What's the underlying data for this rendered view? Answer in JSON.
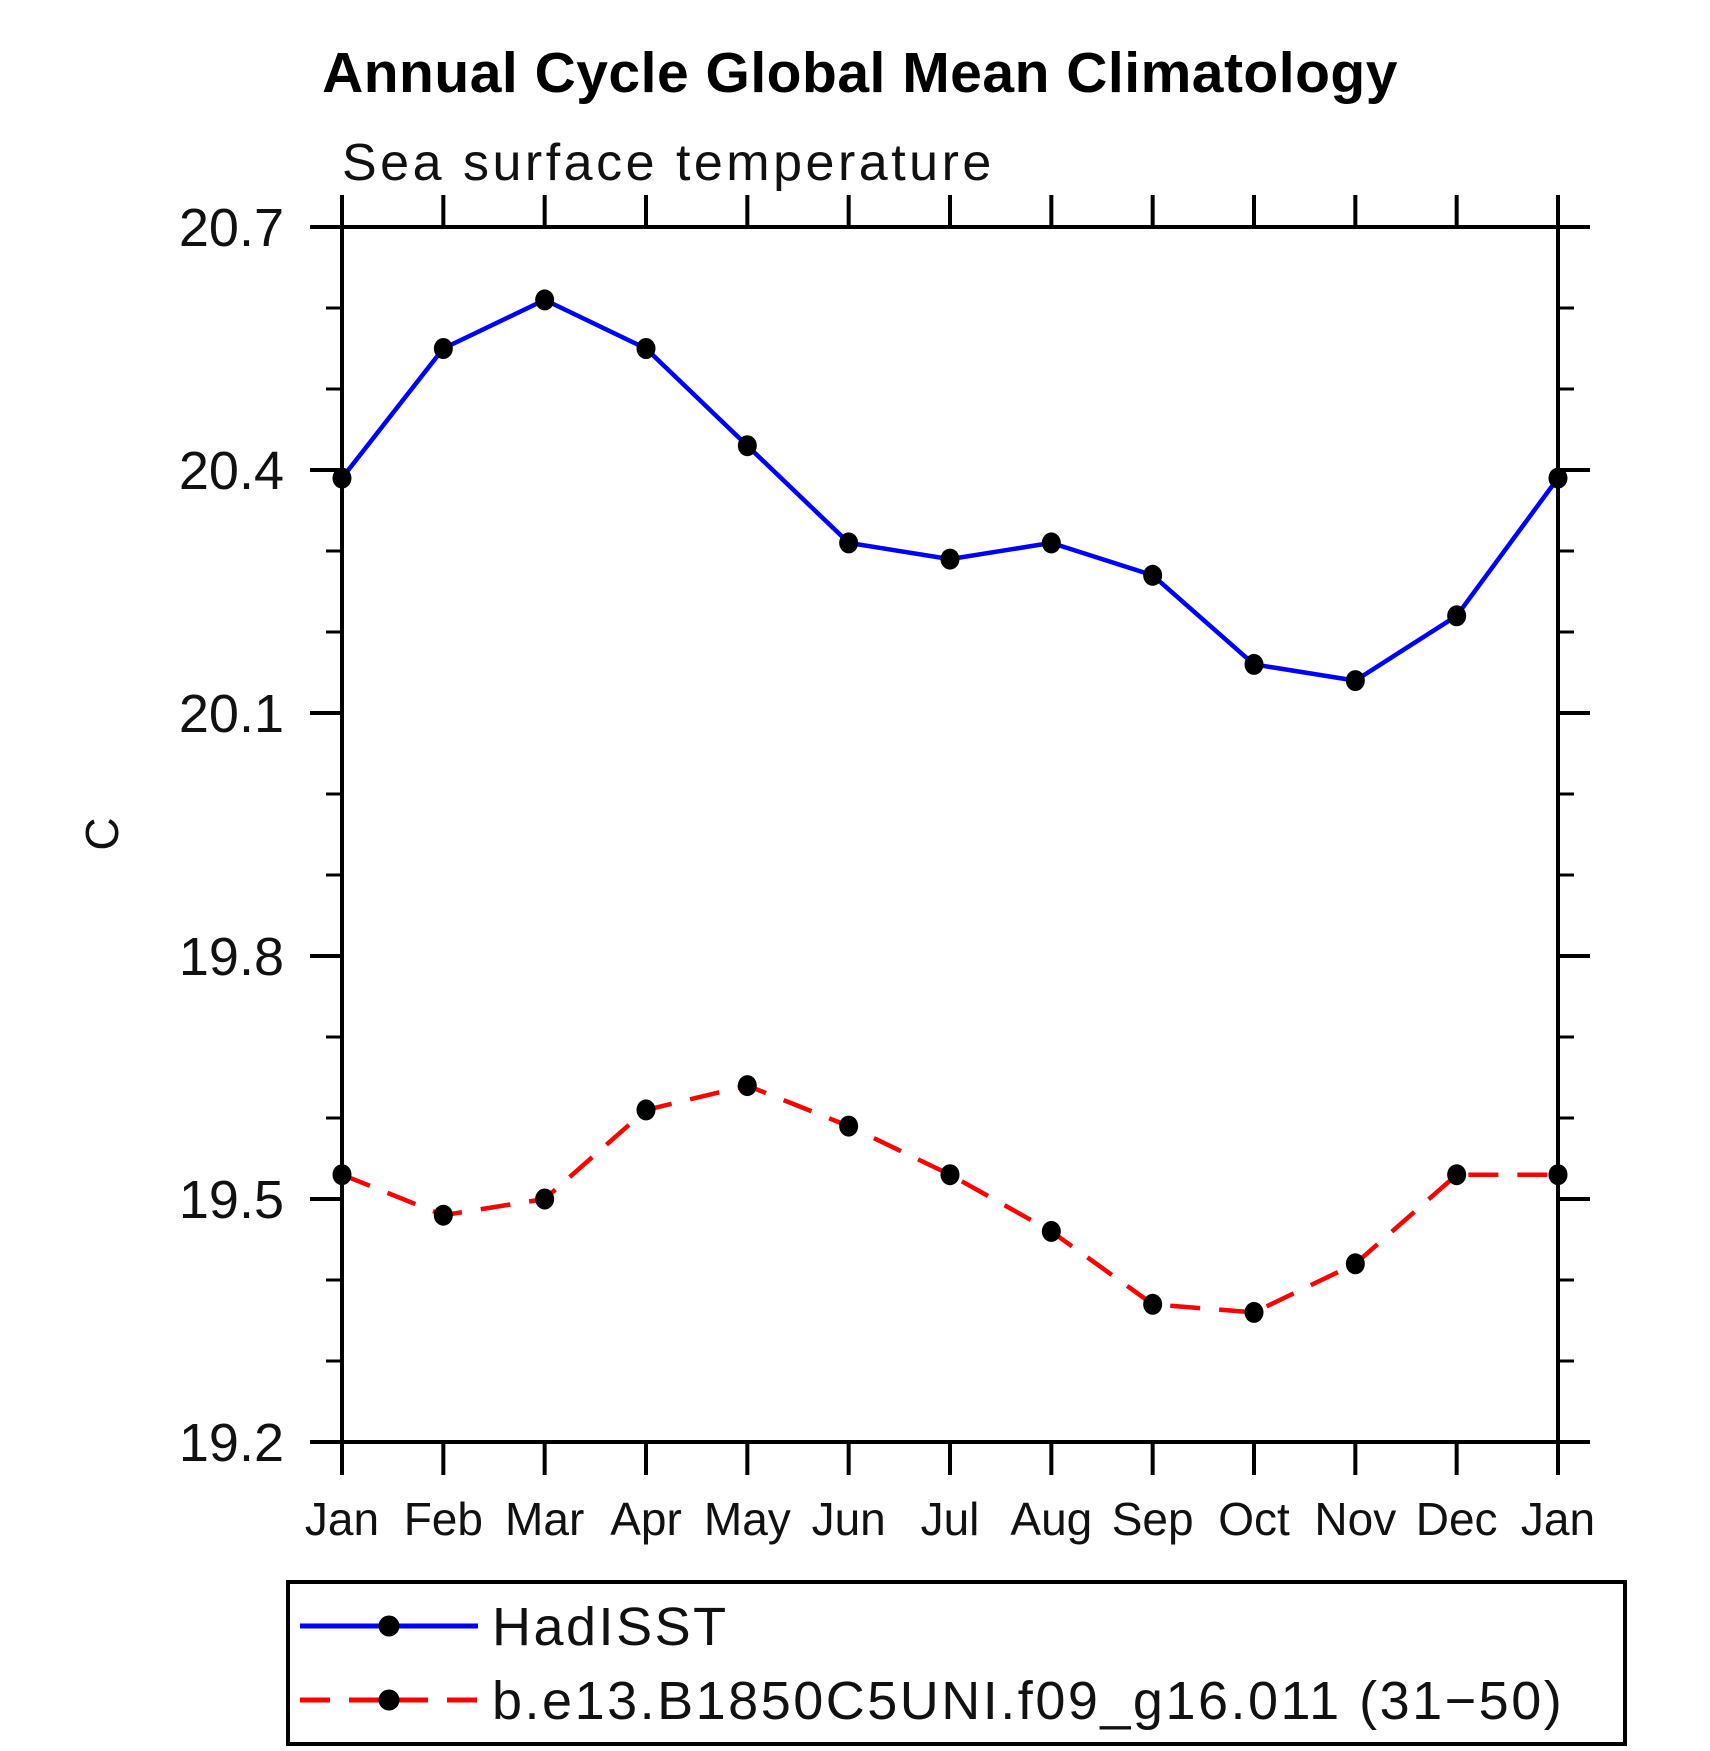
{
  "header": {
    "title": "Annual Cycle Global Mean Climatology",
    "subtitle": "Sea surface temperature"
  },
  "chart_data": {
    "type": "line",
    "title": "Annual Cycle Global Mean Climatology",
    "subtitle": "Sea surface temperature",
    "ylabel": "C",
    "xlabel": "",
    "x_categories": [
      "Jan",
      "Feb",
      "Mar",
      "Apr",
      "May",
      "Jun",
      "Jul",
      "Aug",
      "Sep",
      "Oct",
      "Nov",
      "Dec",
      "Jan"
    ],
    "ylim": [
      19.2,
      20.7
    ],
    "y_major_ticks": [
      {
        "value": 19.2,
        "label": "19.2"
      },
      {
        "value": 19.5,
        "label": "19.5"
      },
      {
        "value": 19.8,
        "label": "19.8"
      },
      {
        "value": 20.1,
        "label": "20.1"
      },
      {
        "value": 20.4,
        "label": "20.4"
      },
      {
        "value": 20.7,
        "label": "20.7"
      }
    ],
    "y_minor_step": 0.1,
    "grid": "off",
    "legend_position": "bottom-left",
    "series": [
      {
        "name": "HadISST",
        "color": "#0000ff",
        "line_style": "solid",
        "marker": "filled-circle",
        "marker_color": "#000000",
        "values": [
          20.39,
          20.55,
          20.61,
          20.55,
          20.43,
          20.31,
          20.29,
          20.31,
          20.27,
          20.16,
          20.14,
          20.22,
          20.39
        ]
      },
      {
        "name": "b.e13.B1850C5UNI.f09_g16.011 (31−50)",
        "color": "#ff0000",
        "line_style": "dashed",
        "marker": "filled-circle",
        "marker_color": "#000000",
        "values": [
          19.53,
          19.48,
          19.5,
          19.61,
          19.64,
          19.59,
          19.53,
          19.46,
          19.37,
          19.36,
          19.42,
          19.53,
          19.53
        ]
      }
    ]
  }
}
